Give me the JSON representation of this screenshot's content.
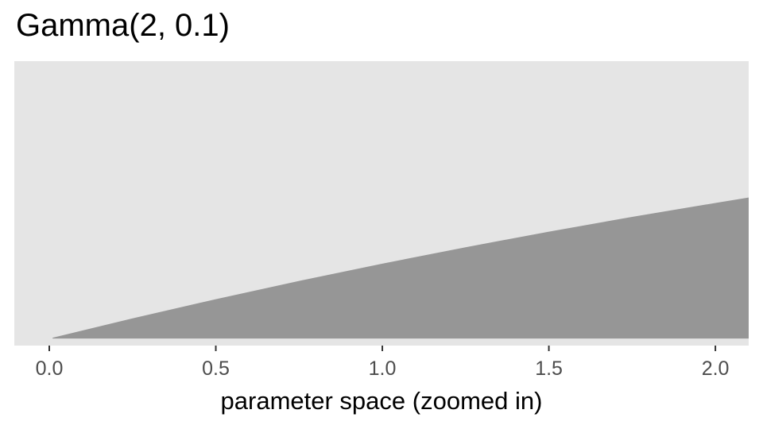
{
  "chart_data": {
    "type": "area",
    "title": "Gamma(2, 0.1)",
    "xlabel": "parameter space (zoomed in)",
    "ylabel": "",
    "distribution": {
      "shape": 2,
      "rate": 0.1
    },
    "x": [
      0.01,
      0.25,
      0.5,
      0.75,
      1.0,
      1.25,
      1.5,
      1.75,
      2.0,
      2.1
    ],
    "y": [
      9.9e-05,
      0.002438,
      0.004756,
      0.00696,
      0.009048,
      0.011028,
      0.012911,
      0.014697,
      0.016375,
      0.017029
    ],
    "xlim": [
      -0.105,
      2.1
    ],
    "ylim": [
      -0.00085,
      0.0335
    ],
    "x_ticks": [
      0.0,
      0.5,
      1.0,
      1.5,
      2.0
    ],
    "x_tick_labels": [
      "0.0",
      "0.5",
      "1.0",
      "1.5",
      "2.0"
    ],
    "y_axis_shown": false,
    "grid": false,
    "colors": {
      "panel": "#e5e5e5",
      "fill": "#969696",
      "tick": "#333333",
      "tick_label": "#4d4d4d"
    }
  }
}
